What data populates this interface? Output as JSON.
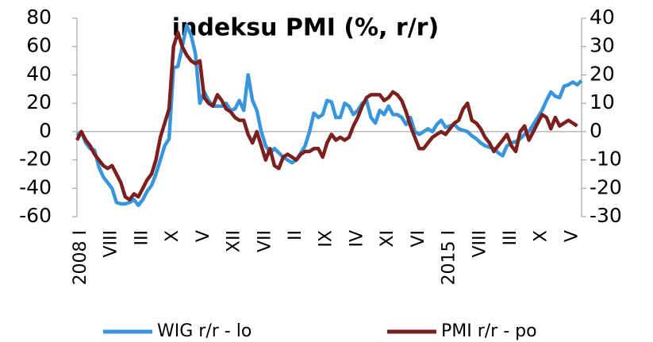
{
  "chart_data": {
    "type": "line",
    "title": "indeksu PMI (%, r/r)",
    "categories": [
      "2008 I",
      null,
      null,
      null,
      null,
      null,
      null,
      "VIII",
      null,
      null,
      null,
      null,
      null,
      null,
      "III",
      null,
      null,
      null,
      null,
      null,
      null,
      "X",
      null,
      null,
      null,
      null,
      null,
      null,
      "V",
      null,
      null,
      null,
      null,
      null,
      null,
      "XII",
      null,
      null,
      null,
      null,
      null,
      null,
      "VII",
      null,
      null,
      null,
      null,
      null,
      null,
      "II",
      null,
      null,
      null,
      null,
      null,
      null,
      "IX",
      null,
      null,
      null,
      null,
      null,
      null,
      "IV",
      null,
      null,
      null,
      null,
      null,
      null,
      "XI",
      null,
      null,
      null,
      null,
      null,
      null,
      "VI",
      null,
      null,
      null,
      null,
      null,
      null,
      "2015 I",
      null,
      null,
      null,
      null,
      null,
      null,
      "VIII",
      null,
      null,
      null,
      null,
      null,
      null,
      "III",
      null,
      null,
      null,
      null,
      null,
      null,
      "X",
      null,
      null,
      null,
      null,
      null,
      null,
      "V",
      null,
      null,
      null
    ],
    "series": [
      {
        "name": "WIG r/r - lo",
        "color": "#3a96dc",
        "axis": "y",
        "values": [
          -3,
          0,
          -8,
          -12,
          -13,
          -25,
          -32,
          -36,
          -40,
          -50,
          -51,
          -51,
          -50,
          -48,
          -52,
          -48,
          -42,
          -38,
          -30,
          -20,
          -10,
          -5,
          45,
          46,
          60,
          75,
          68,
          55,
          20,
          28,
          22,
          18,
          18,
          18,
          20,
          15,
          16,
          22,
          15,
          40,
          22,
          15,
          0,
          -10,
          -15,
          -12,
          -15,
          -18,
          -20,
          -22,
          -20,
          -15,
          -10,
          0,
          13,
          10,
          12,
          22,
          21,
          10,
          10,
          20,
          18,
          12,
          15,
          20,
          22,
          10,
          6,
          15,
          12,
          18,
          12,
          12,
          10,
          5,
          10,
          0,
          -2,
          0,
          2,
          0,
          5,
          8,
          3,
          4,
          5,
          2,
          1,
          0,
          -3,
          -5,
          -8,
          -10,
          -11,
          -12,
          -15,
          -17,
          -10,
          -8,
          -7,
          -5,
          -2,
          0,
          5,
          10,
          15,
          22,
          28,
          25,
          24,
          32,
          33,
          35,
          33,
          36
        ]
      },
      {
        "name": "PMI r/r - po",
        "color": "#7b1f1f",
        "axis": "y2",
        "values": [
          -3,
          0,
          -3,
          -5,
          -8,
          -10,
          -12,
          -13,
          -12,
          -15,
          -18,
          -23,
          -24,
          -22,
          -23,
          -20,
          -17,
          -15,
          -10,
          -2,
          3,
          8,
          30,
          35,
          30,
          27,
          25,
          24,
          25,
          12,
          10,
          9,
          13,
          11,
          8,
          7,
          5,
          4,
          4,
          -1,
          -4,
          0,
          -5,
          -10,
          -6,
          -12,
          -13,
          -9,
          -8,
          -9,
          -10,
          -8,
          -7,
          -7,
          -6,
          -6,
          -9,
          -4,
          -1,
          -3,
          -2,
          -3,
          -2,
          2,
          5,
          9,
          12,
          13,
          13,
          13,
          11,
          12,
          14,
          13,
          11,
          7,
          2,
          -2,
          -6,
          -6,
          -4,
          -2,
          -1,
          0,
          -1,
          1,
          3,
          4,
          8,
          10,
          4,
          3,
          1,
          -2,
          -4,
          -7,
          -5,
          -3,
          -1,
          -5,
          -7,
          0,
          2,
          -3,
          0,
          3,
          6,
          5,
          1,
          5,
          2,
          3,
          4,
          3,
          2,
          null
        ]
      }
    ],
    "ylim": [
      -60,
      80
    ],
    "yticks": [
      -60,
      -40,
      -20,
      0,
      20,
      40,
      60,
      80
    ],
    "y2lim": [
      -30,
      40
    ],
    "y2ticks": [
      -30,
      -20,
      -10,
      0,
      10,
      20,
      30,
      40
    ],
    "legend": "bottom"
  }
}
